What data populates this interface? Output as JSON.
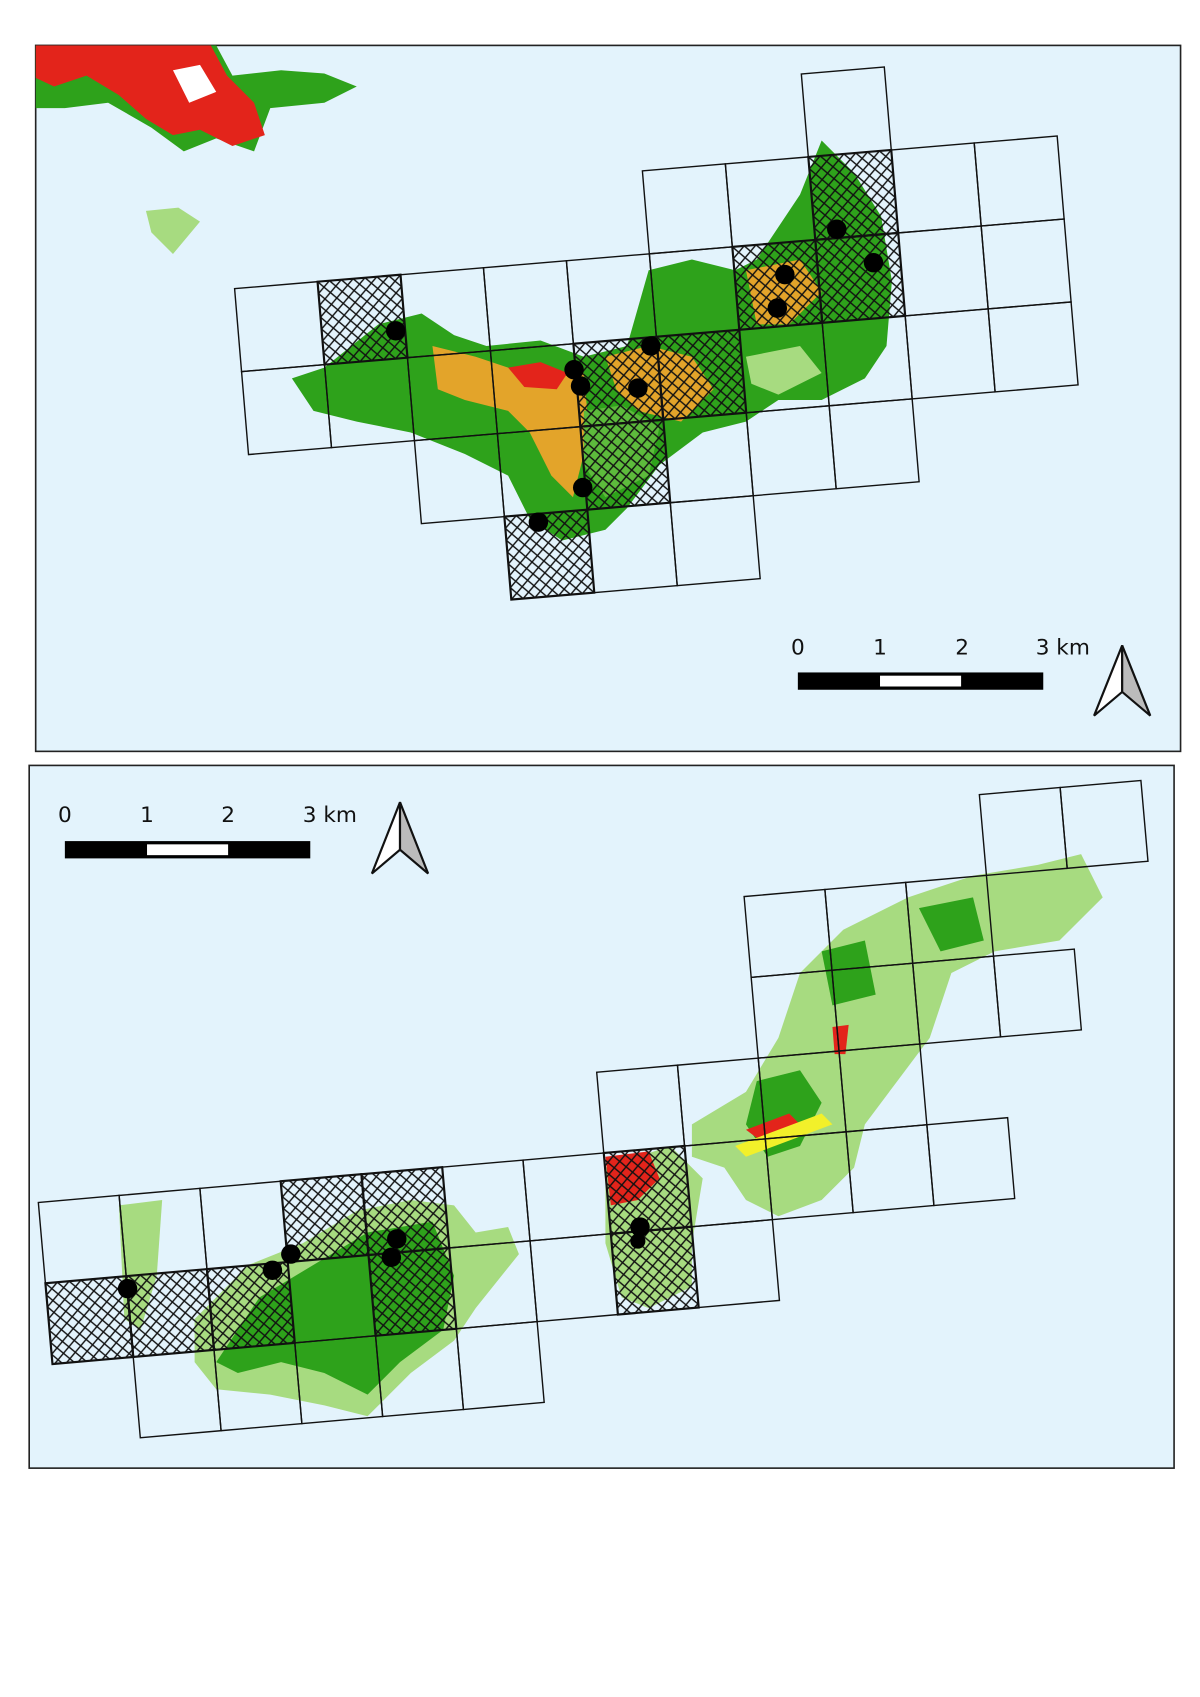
{
  "maps": [
    {
      "scale_bar": {
        "labels": [
          "0",
          "1",
          "2",
          "3 km"
        ]
      }
    },
    {
      "scale_bar": {
        "labels": [
          "0",
          "1",
          "2",
          "3 km"
        ]
      }
    }
  ]
}
